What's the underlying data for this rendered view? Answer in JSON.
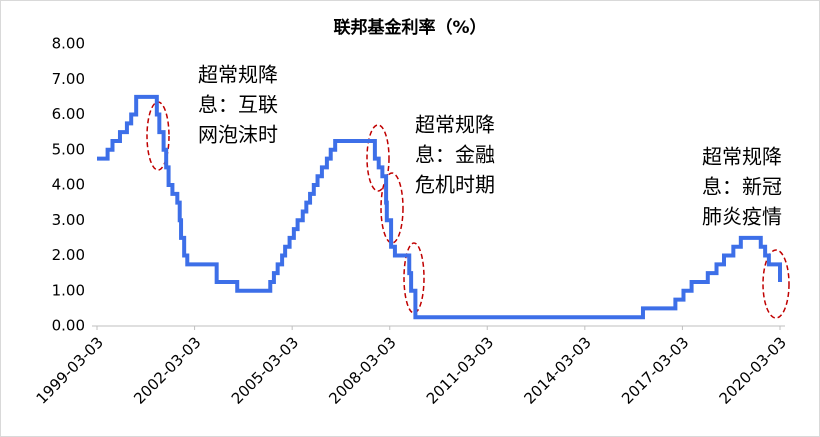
{
  "chart_data": {
    "type": "step-line",
    "title": "联邦基金利率（%）",
    "x": [
      "1999-03-03",
      "1999-06-30",
      "1999-08-24",
      "1999-11-16",
      "2000-02-02",
      "2000-03-21",
      "2000-05-16",
      "2001-01-03",
      "2001-01-31",
      "2001-03-20",
      "2001-04-18",
      "2001-05-15",
      "2001-06-27",
      "2001-08-21",
      "2001-09-17",
      "2001-10-02",
      "2001-11-06",
      "2001-12-11",
      "2002-11-06",
      "2003-06-25",
      "2004-06-30",
      "2004-08-10",
      "2004-09-21",
      "2004-11-10",
      "2004-12-14",
      "2005-02-02",
      "2005-03-22",
      "2005-05-03",
      "2005-06-30",
      "2005-08-09",
      "2005-09-20",
      "2005-11-01",
      "2005-12-13",
      "2006-01-31",
      "2006-03-28",
      "2006-05-10",
      "2006-06-29",
      "2007-09-18",
      "2007-10-31",
      "2007-12-11",
      "2008-01-22",
      "2008-01-30",
      "2008-03-18",
      "2008-04-30",
      "2008-10-08",
      "2008-10-29",
      "2008-12-16",
      "2015-12-16",
      "2016-12-14",
      "2017-03-15",
      "2017-06-14",
      "2017-12-13",
      "2018-03-21",
      "2018-06-13",
      "2018-09-26",
      "2018-12-19",
      "2019-07-31",
      "2019-09-18",
      "2019-10-30",
      "2020-03-03"
    ],
    "series": [
      {
        "name": "联邦基金利率",
        "color": "#3d6fe8",
        "values": [
          4.75,
          5.0,
          5.25,
          5.5,
          5.75,
          6.0,
          6.5,
          6.0,
          5.5,
          5.0,
          4.5,
          4.0,
          3.75,
          3.5,
          3.0,
          2.5,
          2.0,
          1.75,
          1.25,
          1.0,
          1.25,
          1.5,
          1.75,
          2.0,
          2.25,
          2.5,
          2.75,
          3.0,
          3.25,
          3.5,
          3.75,
          4.0,
          4.25,
          4.5,
          4.75,
          5.0,
          5.25,
          4.75,
          4.5,
          4.25,
          3.5,
          3.0,
          2.25,
          2.0,
          1.5,
          1.0,
          0.25,
          0.5,
          0.75,
          1.0,
          1.25,
          1.5,
          1.75,
          2.0,
          2.25,
          2.5,
          2.25,
          2.0,
          1.75,
          1.25
        ]
      }
    ],
    "xlim": [
      "1999-03-03",
      "2020-03-03"
    ],
    "xticks": [
      "1999-03-03",
      "2002-03-03",
      "2005-03-03",
      "2008-03-03",
      "2011-03-03",
      "2014-03-03",
      "2017-03-03",
      "2020-03-03"
    ],
    "ylim": [
      0,
      8
    ],
    "yticks": [
      {
        "value": 0,
        "label": "0.00"
      },
      {
        "value": 1,
        "label": "1.00"
      },
      {
        "value": 2,
        "label": "2.00"
      },
      {
        "value": 3,
        "label": "3.00"
      },
      {
        "value": 4,
        "label": "4.00"
      },
      {
        "value": 5,
        "label": "5.00"
      },
      {
        "value": 6,
        "label": "6.00"
      },
      {
        "value": 7,
        "label": "7.00"
      },
      {
        "value": 8,
        "label": "8.00"
      }
    ],
    "grid": false,
    "annotations": [
      {
        "lines": [
          "超常规降",
          "息：互联",
          "网泡沫时"
        ]
      },
      {
        "lines": [
          "超常规降",
          "息：金融",
          "危机时期"
        ]
      },
      {
        "lines": [
          "超常规降",
          "息：新冠",
          "肺炎疫情"
        ]
      }
    ]
  }
}
